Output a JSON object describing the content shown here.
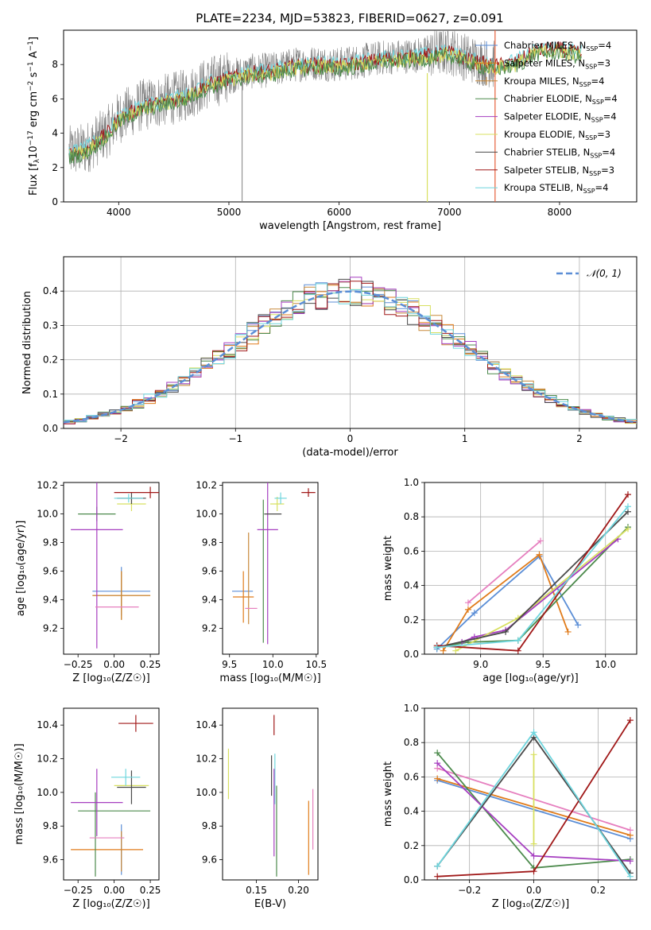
{
  "figure": {
    "title": "PLATE=2234, MJD=53823, FIBERID=0627, z=0.091"
  },
  "colors": {
    "Chabrier MILES": "#5b8ed6",
    "Salpeter MILES": "#e07b1a",
    "Kroupa MILES": "#c8893a",
    "Chabrier ELODIE": "#4c8a4c",
    "Salpeter ELODIE": "#a63fc0",
    "Kroupa ELODIE": "#d8e060",
    "Chabrier STELIB": "#4a4a4a",
    "Salpeter STELIB": "#a01818",
    "Kroupa STELIB": "#6fd6de",
    "pink": "#e67fbf",
    "gauss": "#5b8ed6",
    "data": "#808080"
  },
  "chart_data": [
    {
      "id": "spectrum",
      "type": "line",
      "xlabel": "wavelength [Angstrom, rest frame]",
      "ylabel_main": "Flux [f",
      "ylabel_sub": "λ",
      "ylabel_rest": "10",
      "ylabel_exp": "−17",
      "ylabel_tail": " erg cm",
      "ylabel_exp2": "−2",
      "ylabel_s": " s",
      "ylabel_exp3": "−1",
      "ylabel_A": " A",
      "ylabel_exp4": "−1",
      "ylabel_end": "]",
      "xlim": [
        3500,
        8700
      ],
      "ylim": [
        0,
        10
      ],
      "xticks": [
        4000,
        5000,
        6000,
        7000,
        8000
      ],
      "yticks": [
        0,
        2,
        4,
        6,
        8
      ],
      "continuum": [
        [
          3550,
          2.9
        ],
        [
          3700,
          3.1
        ],
        [
          3900,
          4.1
        ],
        [
          4000,
          4.9
        ],
        [
          4200,
          5.6
        ],
        [
          4400,
          5.9
        ],
        [
          4600,
          6.2
        ],
        [
          4800,
          6.9
        ],
        [
          5000,
          7.3
        ],
        [
          5200,
          7.6
        ],
        [
          5400,
          7.7
        ],
        [
          5600,
          8.0
        ],
        [
          5800,
          8.1
        ],
        [
          6000,
          8.0
        ],
        [
          6200,
          8.2
        ],
        [
          6400,
          8.4
        ],
        [
          6600,
          8.5
        ],
        [
          6800,
          8.6
        ],
        [
          7000,
          8.8
        ],
        [
          7200,
          8.3
        ],
        [
          7400,
          8.0
        ],
        [
          7600,
          8.2
        ],
        [
          7800,
          8.9
        ],
        [
          8000,
          9.0
        ],
        [
          8200,
          8.7
        ]
      ],
      "legend": [
        {
          "name": "Chabrier MILES, N",
          "sub": "SSP",
          "tail": "=4"
        },
        {
          "name": "Salpeter MILES, N",
          "sub": "SSP",
          "tail": "=3"
        },
        {
          "name": "Kroupa MILES, N",
          "sub": "SSP",
          "tail": "=4"
        },
        {
          "name": "Chabrier ELODIE, N",
          "sub": "SSP",
          "tail": "=4"
        },
        {
          "name": "Salpeter ELODIE, N",
          "sub": "SSP",
          "tail": "=4"
        },
        {
          "name": "Kroupa ELODIE, N",
          "sub": "SSP",
          "tail": "=3"
        },
        {
          "name": "Chabrier STELIB, N",
          "sub": "SSP",
          "tail": "=4"
        },
        {
          "name": "Salpeter STELIB, N",
          "sub": "SSP",
          "tail": "=3"
        },
        {
          "name": "Kroupa STELIB, N",
          "sub": "SSP",
          "tail": "=4"
        }
      ]
    },
    {
      "id": "residuals",
      "type": "histogram",
      "xlabel": "(data-model)/error",
      "ylabel": "Normed distribution",
      "xlim": [
        -2.5,
        2.5
      ],
      "ylim": [
        0,
        0.5
      ],
      "xticks": [
        -2,
        -1,
        0,
        1,
        2
      ],
      "xticklabels": [
        "−2",
        "−1",
        "0",
        "1",
        "2"
      ],
      "yticks": [
        0,
        0.1,
        0.2,
        0.3,
        0.4
      ],
      "yticklabels": [
        "0.0",
        "0.1",
        "0.2",
        "0.3",
        "0.4"
      ],
      "legend": "𝒩(0, 1)",
      "bin_width": 0.1
    },
    {
      "id": "age-vs-Z",
      "type": "errorbar",
      "xlabel": "Z [log₁₀(Z/Z☉)]",
      "ylabel": "age  [log₁₀(age/yr)]",
      "xlim": [
        -0.35,
        0.31
      ],
      "ylim": [
        9.02,
        10.22
      ],
      "xticks": [
        -0.25,
        0,
        0.25
      ],
      "xticklabels": [
        "−0.25",
        "0.00",
        "0.25"
      ],
      "yticks": [
        9.2,
        9.4,
        9.6,
        9.8,
        10.0,
        10.2
      ],
      "yticklabels": [
        "9.2",
        "9.4",
        "9.6",
        "9.8",
        "10.0",
        "10.2"
      ],
      "points": [
        {
          "c": "Chabrier MILES",
          "x": 0.05,
          "xe": 0.2,
          "y": 9.46,
          "ye": 0.17
        },
        {
          "c": "Salpeter MILES",
          "x": 0.05,
          "xe": 0.2,
          "y": 9.43,
          "ye": 0.17
        },
        {
          "c": "Kroupa MILES",
          "x": 0.05,
          "xe": 0.2,
          "y": 9.43,
          "ye": 0.17
        },
        {
          "c": "Chabrier ELODIE",
          "x": -0.12,
          "xe": 0.13,
          "y": 10.0,
          "ye": 0.05
        },
        {
          "c": "Salpeter ELODIE",
          "x": -0.12,
          "xe": 0.18,
          "y": 9.89,
          "ye": 0.83
        },
        {
          "c": "Kroupa ELODIE",
          "x": 0.12,
          "xe": 0.1,
          "y": 10.07,
          "ye": 0.05
        },
        {
          "c": "Chabrier STELIB",
          "x": 0.12,
          "xe": 0.1,
          "y": 10.11,
          "ye": 0.04
        },
        {
          "c": "Salpeter STELIB",
          "x": 0.25,
          "xe": 0.25,
          "y": 10.15,
          "ye": 0.04
        },
        {
          "c": "Kroupa STELIB",
          "x": 0.1,
          "xe": 0.1,
          "y": 10.11,
          "ye": 0.03
        },
        {
          "c": "pink",
          "x": 0.02,
          "xe": 0.15,
          "y": 9.35,
          "ye": 0.0
        }
      ]
    },
    {
      "id": "age-vs-mass",
      "type": "errorbar",
      "xlabel": "mass [log₁₀(M/M☉)]",
      "xlim": [
        9.42,
        10.52
      ],
      "ylim": [
        9.02,
        10.22
      ],
      "xticks": [
        9.5,
        10.0,
        10.5
      ],
      "xticklabels": [
        "9.5",
        "10.0",
        "10.5"
      ],
      "yticks": [
        9.2,
        9.4,
        9.6,
        9.8,
        10.0,
        10.2
      ],
      "yticklabels": [
        "9.2",
        "9.4",
        "9.6",
        "9.8",
        "10.0",
        "10.2"
      ],
      "points": [
        {
          "c": "Chabrier MILES",
          "x": 9.65,
          "xe": 0.12,
          "y": 9.46,
          "ye": 0.0
        },
        {
          "c": "Salpeter MILES",
          "x": 9.66,
          "xe": 0.12,
          "y": 9.42,
          "ye": 0.18
        },
        {
          "c": "Kroupa MILES",
          "x": 9.72,
          "xe": 0.0,
          "y": 9.55,
          "ye": 0.32
        },
        {
          "c": "Chabrier ELODIE",
          "x": 9.89,
          "xe": 0.0,
          "y": 9.6,
          "ye": 0.5
        },
        {
          "c": "Salpeter ELODIE",
          "x": 9.94,
          "xe": 0.12,
          "y": 9.89,
          "ye": 0.8
        },
        {
          "c": "Kroupa ELODIE",
          "x": 10.05,
          "xe": 0.08,
          "y": 10.07,
          "ye": 0.05
        },
        {
          "c": "Chabrier STELIB",
          "x": 10.0,
          "xe": 0.1,
          "y": 10.0,
          "ye": 0.0
        },
        {
          "c": "Salpeter STELIB",
          "x": 10.41,
          "xe": 0.08,
          "y": 10.15,
          "ye": 0.03
        },
        {
          "c": "Kroupa STELIB",
          "x": 10.09,
          "xe": 0.07,
          "y": 10.11,
          "ye": 0.04
        },
        {
          "c": "pink",
          "x": 9.75,
          "xe": 0.07,
          "y": 9.34,
          "ye": 0.0
        }
      ]
    },
    {
      "id": "mass-weight-vs-age",
      "type": "line",
      "xlabel": "age  [log₁₀(age/yr)]",
      "ylabel": "mass weight",
      "xlim": [
        8.55,
        10.25
      ],
      "ylim": [
        0,
        1.0
      ],
      "xticks": [
        9.0,
        9.5,
        10.0
      ],
      "xticklabels": [
        "9.0",
        "9.5",
        "10.0"
      ],
      "yticks": [
        0,
        0.2,
        0.4,
        0.6,
        0.8,
        1.0
      ],
      "yticklabels": [
        "0.0",
        "0.2",
        "0.4",
        "0.6",
        "0.8",
        "1.0"
      ],
      "series": [
        {
          "c": "Chabrier MILES",
          "x": [
            8.65,
            8.95,
            9.47,
            9.78
          ],
          "y": [
            0.03,
            0.24,
            0.57,
            0.17
          ]
        },
        {
          "c": "Salpeter MILES",
          "x": [
            8.7,
            8.9,
            9.47,
            9.7
          ],
          "y": [
            0.02,
            0.26,
            0.58,
            0.13
          ]
        },
        {
          "c": "pink",
          "x": [
            8.9,
            9.48
          ],
          "y": [
            0.3,
            0.66
          ]
        },
        {
          "c": "Chabrier ELODIE",
          "x": [
            8.65,
            8.9,
            9.3,
            10.18
          ],
          "y": [
            0.04,
            0.07,
            0.08,
            0.74
          ]
        },
        {
          "c": "Salpeter ELODIE",
          "x": [
            8.85,
            8.95,
            9.2,
            10.1
          ],
          "y": [
            0.07,
            0.1,
            0.14,
            0.67
          ]
        },
        {
          "c": "Kroupa ELODIE",
          "x": [
            8.8,
            9.3,
            10.18
          ],
          "y": [
            0.02,
            0.21,
            0.73
          ]
        },
        {
          "c": "Chabrier STELIB",
          "x": [
            8.65,
            9.2,
            10.18
          ],
          "y": [
            0.04,
            0.13,
            0.83
          ]
        },
        {
          "c": "Salpeter STELIB",
          "x": [
            8.65,
            9.3,
            10.18
          ],
          "y": [
            0.05,
            0.02,
            0.93
          ]
        },
        {
          "c": "Kroupa STELIB",
          "x": [
            8.65,
            9.3,
            10.18
          ],
          "y": [
            0.04,
            0.08,
            0.86
          ]
        }
      ]
    },
    {
      "id": "mass-vs-Z",
      "type": "errorbar",
      "xlabel": "Z [log₁₀(Z/Z☉)]",
      "ylabel": "mass [log₁₀(M/M☉)]",
      "xlim": [
        -0.35,
        0.31
      ],
      "ylim": [
        9.48,
        10.5
      ],
      "xticks": [
        -0.25,
        0,
        0.25
      ],
      "xticklabels": [
        "−0.25",
        "0.00",
        "0.25"
      ],
      "yticks": [
        9.6,
        9.8,
        10.0,
        10.2,
        10.4
      ],
      "yticklabels": [
        "9.6",
        "9.8",
        "10.0",
        "10.2",
        "10.4"
      ],
      "points": [
        {
          "c": "Chabrier MILES",
          "x": 0.05,
          "xe": 0.0,
          "y": 9.66,
          "ye": 0.15
        },
        {
          "c": "Salpeter MILES",
          "x": -0.05,
          "xe": 0.25,
          "y": 9.66,
          "ye": 0.0
        },
        {
          "c": "Kroupa MILES",
          "x": 0.05,
          "xe": 0.0,
          "y": 9.65,
          "ye": 0.12
        },
        {
          "c": "Chabrier ELODIE",
          "x": -0.13,
          "xe": 0.0,
          "y": 9.75,
          "ye": 0.25
        },
        {
          "c": "Chabrier ELODIE",
          "x": 0.0,
          "xe": 0.25,
          "y": 9.89,
          "ye": 0.0
        },
        {
          "c": "Salpeter ELODIE",
          "x": -0.12,
          "xe": 0.18,
          "y": 9.94,
          "ye": 0.2
        },
        {
          "c": "Kroupa ELODIE",
          "x": 0.12,
          "xe": 0.12,
          "y": 10.04,
          "ye": 0.0
        },
        {
          "c": "Chabrier STELIB",
          "x": 0.12,
          "xe": 0.1,
          "y": 10.03,
          "ye": 0.1
        },
        {
          "c": "Salpeter STELIB",
          "x": 0.15,
          "xe": 0.12,
          "y": 10.41,
          "ye": 0.05
        },
        {
          "c": "Kroupa STELIB",
          "x": 0.08,
          "xe": 0.1,
          "y": 10.09,
          "ye": 0.05
        },
        {
          "c": "pink",
          "x": -0.05,
          "xe": 0.12,
          "y": 9.73,
          "ye": 0.0
        }
      ]
    },
    {
      "id": "mass-vs-EBV",
      "type": "errorbar",
      "xlabel": "E(B-V)",
      "xlim": [
        0.11,
        0.223
      ],
      "ylim": [
        9.48,
        10.5
      ],
      "xticks": [
        0.15,
        0.2
      ],
      "xticklabels": [
        "0.15",
        "0.20"
      ],
      "yticks": [
        9.6,
        9.8,
        10.0,
        10.2,
        10.4
      ],
      "yticklabels": [
        "9.6",
        "9.8",
        "10.0",
        "10.2",
        "10.4"
      ],
      "points": [
        {
          "c": "Kroupa ELODIE",
          "x": 0.117,
          "y": 10.11,
          "ye": 0.15
        },
        {
          "c": "Chabrier STELIB",
          "x": 0.168,
          "y": 10.1,
          "ye": 0.12
        },
        {
          "c": "Salpeter STELIB",
          "x": 0.171,
          "y": 10.4,
          "ye": 0.06
        },
        {
          "c": "Kroupa STELIB",
          "x": 0.172,
          "y": 10.08,
          "ye": 0.15
        },
        {
          "c": "Salpeter ELODIE",
          "x": 0.171,
          "y": 9.88,
          "ye": 0.26
        },
        {
          "c": "Chabrier ELODIE",
          "x": 0.174,
          "y": 9.77,
          "ye": 0.27
        },
        {
          "c": "Salpeter MILES",
          "x": 0.212,
          "y": 9.73,
          "ye": 0.22
        },
        {
          "c": "pink",
          "x": 0.217,
          "y": 9.84,
          "ye": 0.18
        }
      ]
    },
    {
      "id": "mass-weight-vs-Z",
      "type": "line",
      "xlabel": "Z [log₁₀(Z/Z☉)]",
      "ylabel": "mass weight",
      "xlim": [
        -0.34,
        0.32
      ],
      "ylim": [
        0,
        1.0
      ],
      "xticks": [
        -0.2,
        0,
        0.2
      ],
      "xticklabels": [
        "−0.2",
        "0.0",
        "0.2"
      ],
      "yticks": [
        0,
        0.2,
        0.4,
        0.6,
        0.8,
        1.0
      ],
      "yticklabels": [
        "0.0",
        "0.2",
        "0.4",
        "0.6",
        "0.8",
        "1.0"
      ],
      "series": [
        {
          "c": "Chabrier MILES",
          "x": [
            -0.3,
            0.3
          ],
          "y": [
            0.58,
            0.24
          ]
        },
        {
          "c": "Salpeter MILES",
          "x": [
            -0.3,
            0.3
          ],
          "y": [
            0.59,
            0.26
          ]
        },
        {
          "c": "pink",
          "x": [
            -0.3,
            0.3
          ],
          "y": [
            0.65,
            0.29
          ]
        },
        {
          "c": "Chabrier ELODIE",
          "x": [
            -0.3,
            0.0,
            0.3
          ],
          "y": [
            0.74,
            0.07,
            0.12
          ]
        },
        {
          "c": "Salpeter ELODIE",
          "x": [
            -0.3,
            0.0,
            0.3
          ],
          "y": [
            0.68,
            0.14,
            0.11
          ]
        },
        {
          "c": "Kroupa ELODIE",
          "x": [
            0.0,
            0.0
          ],
          "y": [
            0.73,
            0.21
          ]
        },
        {
          "c": "Chabrier STELIB",
          "x": [
            -0.3,
            0.0,
            0.3
          ],
          "y": [
            0.08,
            0.83,
            0.04
          ]
        },
        {
          "c": "Salpeter STELIB",
          "x": [
            -0.3,
            0.0,
            0.3
          ],
          "y": [
            0.02,
            0.05,
            0.93
          ]
        },
        {
          "c": "Kroupa STELIB",
          "x": [
            -0.3,
            0.0,
            0.3
          ],
          "y": [
            0.08,
            0.86,
            0.02
          ]
        }
      ]
    }
  ]
}
